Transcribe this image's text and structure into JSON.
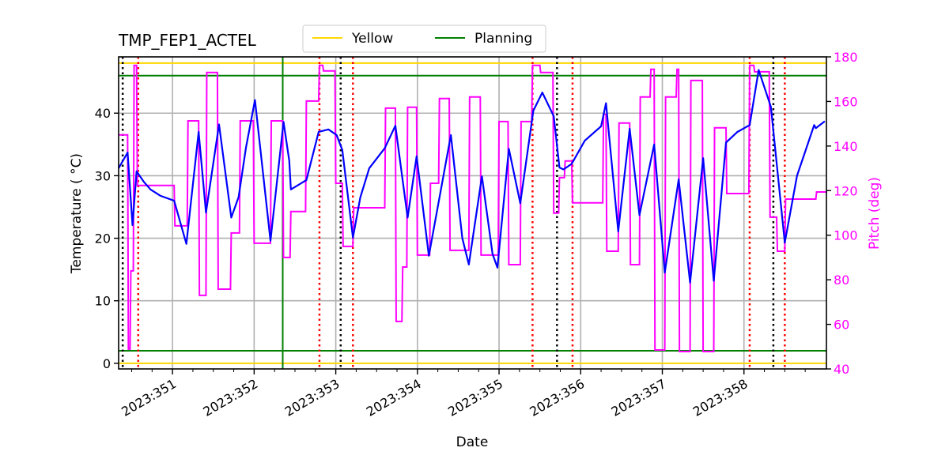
{
  "chart_data": {
    "type": "line",
    "title": "TMP_FEP1_ACTEL",
    "xlabel": "Date",
    "ylabel": "Temperature ($^\\circ$C)",
    "ylabel_display": "Temperature ( °C)",
    "y2label": "Pitch (deg)",
    "xlim": [
      350.34,
      359.01
    ],
    "ylim": [
      -0.9,
      49.0
    ],
    "y2lim": [
      40,
      180
    ],
    "grid": true,
    "legend": {
      "placement": "top-center",
      "entries": [
        {
          "label": "Yellow",
          "color": "#ffd700"
        },
        {
          "label": "Planning",
          "color": "#008000"
        }
      ]
    },
    "x_ticks": [
      351,
      352,
      353,
      354,
      355,
      356,
      357,
      358
    ],
    "x_tick_labels": [
      "2023:351",
      "2023:352",
      "2023:353",
      "2023:354",
      "2023:355",
      "2023:356",
      "2023:357",
      "2023:358"
    ],
    "y_ticks": [
      0,
      10,
      20,
      30,
      40
    ],
    "y_tick_labels": [
      "0",
      "10",
      "20",
      "30",
      "40"
    ],
    "y2_ticks": [
      40,
      60,
      80,
      100,
      120,
      140,
      160,
      180
    ],
    "y2_tick_labels": [
      "40",
      "60",
      "80",
      "100",
      "120",
      "140",
      "160",
      "180"
    ],
    "limits": {
      "yellow": [
        48.0,
        0.0
      ],
      "planning": [
        46.0,
        2.0
      ]
    },
    "colors": {
      "temperature": "#0000ff",
      "pitch": "#ff00ff",
      "yellow": "#ffd700",
      "planning": "#008000",
      "red_marker": "#ff0000",
      "black_marker": "#000000"
    },
    "vertical_lines": {
      "planning_green": [
        352.35
      ],
      "black_dotted": [
        350.39,
        353.06,
        355.71,
        358.36
      ],
      "red_dotted": [
        350.58,
        352.8,
        353.21,
        355.41,
        355.9,
        358.07,
        358.5
      ]
    },
    "temperature": [
      [
        350.34,
        31.2
      ],
      [
        350.45,
        33.7
      ],
      [
        350.51,
        22.1
      ],
      [
        350.56,
        30.7
      ],
      [
        350.65,
        29.0
      ],
      [
        350.73,
        27.8
      ],
      [
        350.85,
        26.8
      ],
      [
        351.02,
        26.0
      ],
      [
        351.17,
        19.1
      ],
      [
        351.32,
        37.0
      ],
      [
        351.41,
        24.1
      ],
      [
        351.57,
        38.2
      ],
      [
        351.72,
        23.3
      ],
      [
        351.81,
        26.6
      ],
      [
        351.9,
        34.5
      ],
      [
        352.01,
        42.1
      ],
      [
        352.2,
        19.6
      ],
      [
        352.36,
        38.6
      ],
      [
        352.43,
        32.4
      ],
      [
        352.45,
        27.8
      ],
      [
        352.64,
        29.3
      ],
      [
        352.79,
        37.0
      ],
      [
        352.91,
        37.4
      ],
      [
        353.01,
        36.5
      ],
      [
        353.08,
        34.1
      ],
      [
        353.21,
        20.1
      ],
      [
        353.3,
        26.5
      ],
      [
        353.41,
        31.2
      ],
      [
        353.6,
        34.4
      ],
      [
        353.73,
        38.0
      ],
      [
        353.88,
        23.3
      ],
      [
        353.99,
        33.1
      ],
      [
        354.14,
        17.2
      ],
      [
        354.41,
        36.5
      ],
      [
        354.55,
        20.0
      ],
      [
        354.63,
        15.8
      ],
      [
        354.79,
        29.9
      ],
      [
        354.92,
        17.5
      ],
      [
        354.98,
        15.3
      ],
      [
        355.12,
        34.3
      ],
      [
        355.26,
        25.6
      ],
      [
        355.42,
        40.4
      ],
      [
        355.53,
        43.3
      ],
      [
        355.67,
        39.5
      ],
      [
        355.74,
        31.3
      ],
      [
        355.79,
        31.0
      ],
      [
        355.89,
        31.9
      ],
      [
        356.05,
        35.6
      ],
      [
        356.25,
        37.9
      ],
      [
        356.31,
        41.6
      ],
      [
        356.46,
        21.1
      ],
      [
        356.6,
        37.5
      ],
      [
        356.72,
        23.7
      ],
      [
        356.9,
        35.0
      ],
      [
        357.03,
        14.5
      ],
      [
        357.2,
        29.4
      ],
      [
        357.34,
        12.9
      ],
      [
        357.5,
        32.8
      ],
      [
        357.63,
        13.2
      ],
      [
        357.78,
        35.3
      ],
      [
        357.92,
        37.0
      ],
      [
        358.07,
        38.1
      ],
      [
        358.18,
        46.9
      ],
      [
        358.33,
        41.0
      ],
      [
        358.5,
        19.3
      ],
      [
        358.65,
        30.0
      ],
      [
        358.86,
        38.1
      ],
      [
        358.88,
        37.6
      ],
      [
        358.99,
        38.7
      ]
    ],
    "pitch_steps": [
      [
        350.34,
        145.0
      ],
      [
        350.45,
        48.9
      ],
      [
        350.48,
        84.0
      ],
      [
        350.52,
        176.2
      ],
      [
        350.56,
        122.3
      ],
      [
        351.02,
        104.2
      ],
      [
        351.18,
        151.3
      ],
      [
        351.32,
        73.0
      ],
      [
        351.41,
        173.0
      ],
      [
        351.55,
        75.8
      ],
      [
        351.71,
        101.0
      ],
      [
        351.82,
        151.3
      ],
      [
        351.99,
        96.4
      ],
      [
        352.2,
        151.3
      ],
      [
        352.35,
        90.0
      ],
      [
        352.44,
        110.6
      ],
      [
        352.63,
        160.2
      ],
      [
        352.79,
        176.2
      ],
      [
        352.84,
        173.7
      ],
      [
        352.99,
        123.3
      ],
      [
        353.08,
        95.0
      ],
      [
        353.21,
        112.3
      ],
      [
        353.6,
        157.0
      ],
      [
        353.73,
        61.3
      ],
      [
        353.81,
        85.7
      ],
      [
        353.87,
        157.4
      ],
      [
        353.99,
        91.1
      ],
      [
        354.15,
        123.3
      ],
      [
        354.26,
        161.3
      ],
      [
        354.39,
        93.2
      ],
      [
        354.63,
        162.0
      ],
      [
        354.77,
        91.1
      ],
      [
        354.99,
        151.0
      ],
      [
        355.11,
        86.8
      ],
      [
        355.26,
        151.0
      ],
      [
        355.4,
        176.2
      ],
      [
        355.5,
        173.0
      ],
      [
        355.66,
        109.9
      ],
      [
        355.73,
        125.8
      ],
      [
        355.8,
        133.3
      ],
      [
        355.89,
        114.5
      ],
      [
        356.27,
        154.2
      ],
      [
        356.31,
        92.8
      ],
      [
        356.46,
        150.3
      ],
      [
        356.6,
        86.8
      ],
      [
        356.72,
        162.0
      ],
      [
        356.85,
        174.4
      ],
      [
        356.9,
        48.5
      ],
      [
        357.03,
        162.0
      ],
      [
        357.17,
        174.4
      ],
      [
        357.2,
        47.8
      ],
      [
        357.34,
        169.4
      ],
      [
        357.49,
        47.8
      ],
      [
        357.63,
        148.2
      ],
      [
        357.78,
        118.7
      ],
      [
        358.06,
        176.2
      ],
      [
        358.12,
        173.3
      ],
      [
        358.31,
        108.1
      ],
      [
        358.4,
        92.8
      ],
      [
        358.5,
        116.2
      ],
      [
        358.88,
        119.4
      ],
      [
        359.01,
        119.4
      ]
    ]
  }
}
